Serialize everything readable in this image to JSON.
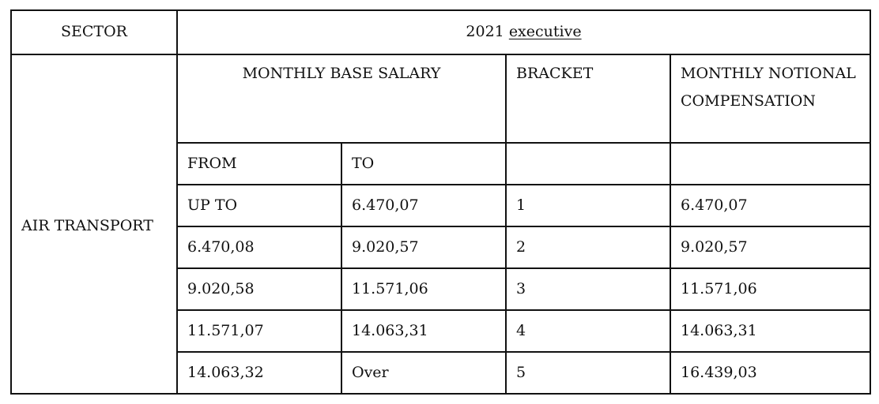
{
  "table": {
    "sector_header": "SECTOR",
    "year": "2021",
    "category": "executive",
    "sector": "AIR TRANSPORT",
    "columns": {
      "base_salary": "MONTHLY BASE SALARY",
      "bracket": "BRACKET",
      "notional_line1": "MONTHLY NOTIONAL",
      "notional_line2": "COMPENSATION",
      "from": "FROM",
      "to": "TO"
    },
    "rows": [
      {
        "from": "UP TO",
        "to": "6.470,07",
        "bracket": "1",
        "compensation": "6.470,07"
      },
      {
        "from": "6.470,08",
        "to": "9.020,57",
        "bracket": "2",
        "compensation": "9.020,57"
      },
      {
        "from": "9.020,58",
        "to": "11.571,06",
        "bracket": "3",
        "compensation": "11.571,06"
      },
      {
        "from": "11.571,07",
        "to": "14.063,31",
        "bracket": "4",
        "compensation": "14.063,31"
      },
      {
        "from": "14.063,32",
        "to": "Over",
        "bracket": "5",
        "compensation": "16.439,03"
      }
    ]
  }
}
